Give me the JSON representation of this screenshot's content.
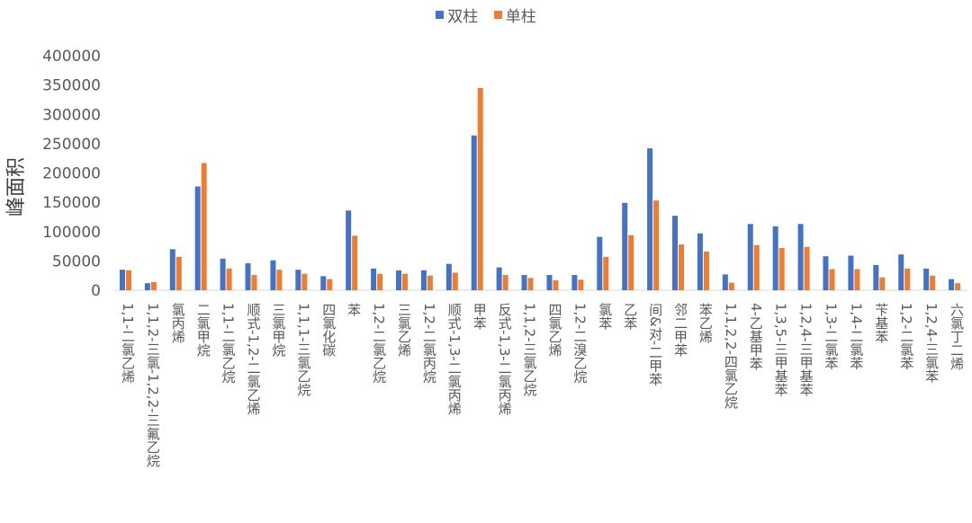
{
  "chart_data": {
    "type": "bar",
    "ylabel": "峰面积",
    "ylim": [
      0,
      400000
    ],
    "ytick_step": 50000,
    "ytick_labels": [
      "0",
      "50000",
      "100000",
      "150000",
      "200000",
      "250000",
      "300000",
      "350000",
      "400000"
    ],
    "legend_position": "top-center",
    "categories": [
      "1,1-二氯乙烯",
      "1,1,2-三氯-1,2,2-三氟乙烷",
      "氯丙烯",
      "二氯甲烷",
      "1,1-二氯乙烷",
      "顺式-1,2-二氯乙烯",
      "三氯甲烷",
      "1,1,1-三氯乙烷",
      "四氯化碳",
      "苯",
      "1,2-二氯乙烷",
      "三氯乙烯",
      "1,2-二氯丙烷",
      "顺式-1,3-二氯丙烯",
      "甲苯",
      "反式-1,3-二氯丙烯",
      "1,1,2-三氯乙烷",
      "四氯乙烯",
      "1,2-二溴乙烷",
      "氯苯",
      "乙苯",
      "间&对-二甲苯",
      "邻二甲苯",
      "苯乙烯",
      "1,1,2,2-四氯乙烷",
      "4-乙基甲苯",
      "1,3,5-三甲基苯",
      "1,2,4-三甲基苯",
      "1,3-二氯苯",
      "1,4-二氯苯",
      "苄基苯",
      "1,2-二氯苯",
      "1,2,4-三氯苯",
      "六氯丁二烯"
    ],
    "series": [
      {
        "name": "双柱",
        "color": "#4472C4",
        "values": [
          35000,
          12000,
          70000,
          177000,
          54000,
          46000,
          51000,
          35000,
          24000,
          136000,
          37000,
          34000,
          34000,
          45000,
          264000,
          39000,
          26000,
          26000,
          26000,
          91000,
          149000,
          242000,
          127000,
          97000,
          27000,
          113000,
          109000,
          113000,
          58000,
          59000,
          43000,
          61000,
          37000,
          19000
        ]
      },
      {
        "name": "单柱",
        "color": "#ED7D31",
        "values": [
          34000,
          14000,
          57000,
          217000,
          37000,
          26000,
          35000,
          28000,
          19000,
          93000,
          28000,
          28000,
          25000,
          30000,
          345000,
          26000,
          21000,
          17000,
          18000,
          57000,
          94000,
          153000,
          78000,
          66000,
          13000,
          77000,
          72000,
          74000,
          36000,
          36000,
          22000,
          37000,
          25000,
          12000
        ]
      }
    ]
  }
}
